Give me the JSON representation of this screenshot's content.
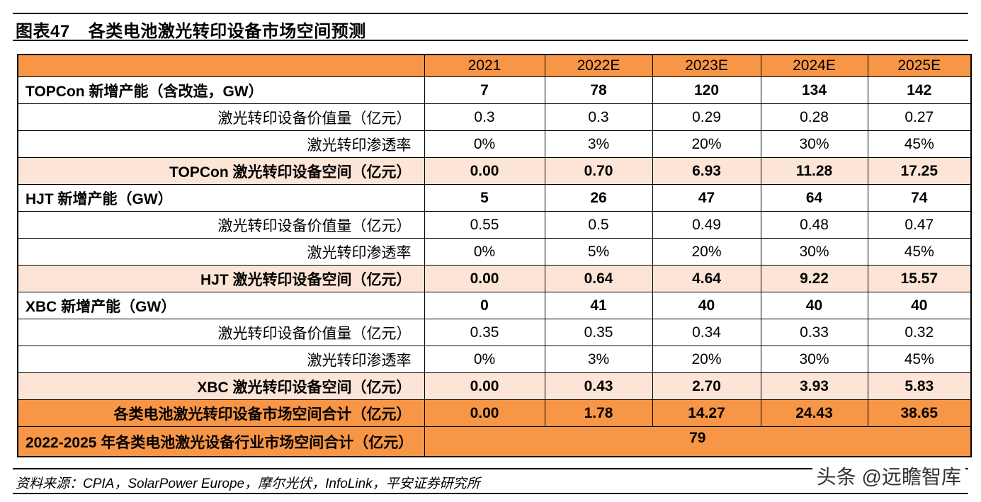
{
  "title": {
    "number": "图表47",
    "text": "各类电池激光转印设备市场空间预测"
  },
  "columns": [
    "2021",
    "2022E",
    "2023E",
    "2024E",
    "2025E"
  ],
  "rows": [
    {
      "type": "bold",
      "label": "TOPCon 新增产能（含改造，GW）",
      "values": [
        "7",
        "78",
        "120",
        "134",
        "142"
      ]
    },
    {
      "type": "normal",
      "label": "激光转印设备价值量（亿元）",
      "values": [
        "0.3",
        "0.3",
        "0.29",
        "0.28",
        "0.27"
      ]
    },
    {
      "type": "normal",
      "label": "激光转印渗透率",
      "values": [
        "0%",
        "3%",
        "20%",
        "30%",
        "45%"
      ]
    },
    {
      "type": "sub",
      "label": "TOPCon 激光转印设备空间（亿元）",
      "values": [
        "0.00",
        "0.70",
        "6.93",
        "11.28",
        "17.25"
      ]
    },
    {
      "type": "bold",
      "label": "HJT 新增产能（GW）",
      "values": [
        "5",
        "26",
        "47",
        "64",
        "74"
      ]
    },
    {
      "type": "normal",
      "label": "激光转印设备价值量（亿元）",
      "values": [
        "0.55",
        "0.5",
        "0.49",
        "0.48",
        "0.47"
      ]
    },
    {
      "type": "normal",
      "label": "激光转印渗透率",
      "values": [
        "0%",
        "5%",
        "20%",
        "30%",
        "45%"
      ]
    },
    {
      "type": "sub",
      "label": "HJT 激光转印设备空间（亿元）",
      "values": [
        "0.00",
        "0.64",
        "4.64",
        "9.22",
        "15.57"
      ]
    },
    {
      "type": "bold",
      "label": "XBC 新增产能（GW）",
      "values": [
        "0",
        "41",
        "40",
        "40",
        "40"
      ]
    },
    {
      "type": "normal",
      "label": "激光转印设备价值量（亿元）",
      "values": [
        "0.35",
        "0.35",
        "0.34",
        "0.33",
        "0.32"
      ]
    },
    {
      "type": "normal",
      "label": "激光转印渗透率",
      "values": [
        "0%",
        "3%",
        "20%",
        "30%",
        "45%"
      ]
    },
    {
      "type": "sub",
      "label": "XBC 激光转印设备空间（亿元）",
      "values": [
        "0.00",
        "0.43",
        "2.70",
        "3.93",
        "5.83"
      ]
    },
    {
      "type": "tot",
      "label": "各类电池激光转印设备市场空间合计（亿元）",
      "values": [
        "0.00",
        "1.78",
        "14.27",
        "24.43",
        "38.65"
      ]
    }
  ],
  "grand": {
    "label": "2022-2025 年各类电池激光设备行业市场空间合计（亿元）",
    "value": "79"
  },
  "source": "资料来源：CPIA，SolarPower Europe，摩尔光伏，InfoLink，平安证券研究所",
  "watermark": "头条 @远瞻智库"
}
